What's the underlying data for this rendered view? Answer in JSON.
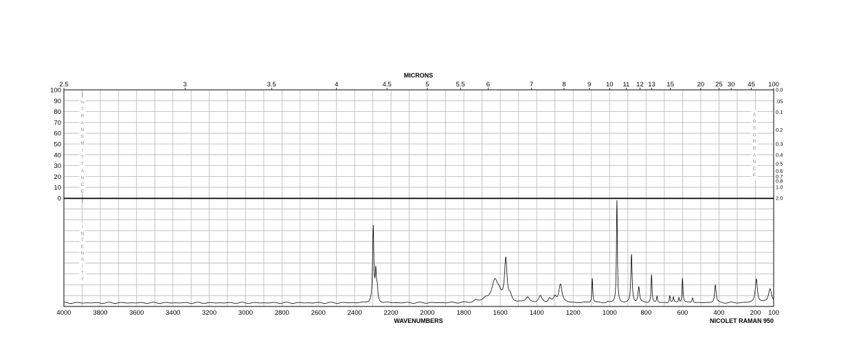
{
  "chart_data": {
    "type": "line",
    "top_axis_title": "MICRONS",
    "xlabel": "WAVENUMBERS",
    "instrument": "NICOLET RAMAN 950",
    "xlim": [
      4000,
      100
    ],
    "x_ticks": [
      "4000",
      "3800",
      "3600",
      "3400",
      "3200",
      "3000",
      "2800",
      "2600",
      "2400",
      "2200",
      "2000",
      "1800",
      "1600",
      "1400",
      "1200",
      "1000",
      "800",
      "600",
      "400",
      "200",
      "100"
    ],
    "micron_ticks": [
      "2.5",
      "3",
      "3.5",
      "4",
      "4.5",
      "5",
      "5.5",
      "6",
      "7",
      "8",
      "9",
      "10",
      "11",
      "12",
      "13",
      "15",
      "20",
      "25",
      "30",
      "45",
      "100"
    ],
    "transmittance_ticks": [
      "100",
      "90",
      "80",
      "70",
      "60",
      "50",
      "40",
      "30",
      "20",
      "10",
      "0"
    ],
    "transmittance_label": "%TRANSMITTANCE",
    "absorbance_ticks": [
      "0.0",
      ".05",
      "0.1",
      "0.2",
      "0.3",
      "0.4",
      "0.5",
      "0.6",
      "0.7",
      "0.8",
      "1.0",
      "2.0"
    ],
    "absorbance_label": "ABSORBANCE",
    "intensity_label": "INTENSITY",
    "grid": true,
    "series": [
      {
        "baseline": 0.015,
        "peaks": [
          {
            "x": 2298,
            "h": 0.72,
            "w": 4
          },
          {
            "x": 2284,
            "h": 0.27,
            "w": 4
          },
          {
            "x": 2276,
            "h": 0.12,
            "w": 4
          },
          {
            "x": 1735,
            "h": 0.02,
            "w": 10
          },
          {
            "x": 1680,
            "h": 0.03,
            "w": 20
          },
          {
            "x": 1630,
            "h": 0.2,
            "w": 20
          },
          {
            "x": 1605,
            "h": 0.06,
            "w": 15
          },
          {
            "x": 1570,
            "h": 0.4,
            "w": 8
          },
          {
            "x": 1545,
            "h": 0.05,
            "w": 10
          },
          {
            "x": 1450,
            "h": 0.05,
            "w": 12
          },
          {
            "x": 1380,
            "h": 0.06,
            "w": 10
          },
          {
            "x": 1330,
            "h": 0.04,
            "w": 8
          },
          {
            "x": 1300,
            "h": 0.05,
            "w": 8
          },
          {
            "x": 1270,
            "h": 0.18,
            "w": 10
          },
          {
            "x": 1095,
            "h": 0.24,
            "w": 3
          },
          {
            "x": 1010,
            "h": 0.01,
            "w": 6
          },
          {
            "x": 960,
            "h": 0.99,
            "w": 3
          },
          {
            "x": 880,
            "h": 0.46,
            "w": 4
          },
          {
            "x": 840,
            "h": 0.15,
            "w": 5
          },
          {
            "x": 770,
            "h": 0.27,
            "w": 3
          },
          {
            "x": 740,
            "h": 0.06,
            "w": 3
          },
          {
            "x": 670,
            "h": 0.07,
            "w": 3
          },
          {
            "x": 650,
            "h": 0.05,
            "w": 3
          },
          {
            "x": 620,
            "h": 0.05,
            "w": 3
          },
          {
            "x": 600,
            "h": 0.24,
            "w": 3
          },
          {
            "x": 545,
            "h": 0.05,
            "w": 4
          },
          {
            "x": 420,
            "h": 0.17,
            "w": 5
          },
          {
            "x": 195,
            "h": 0.23,
            "w": 7
          },
          {
            "x": 120,
            "h": 0.14,
            "w": 10
          }
        ]
      }
    ]
  }
}
